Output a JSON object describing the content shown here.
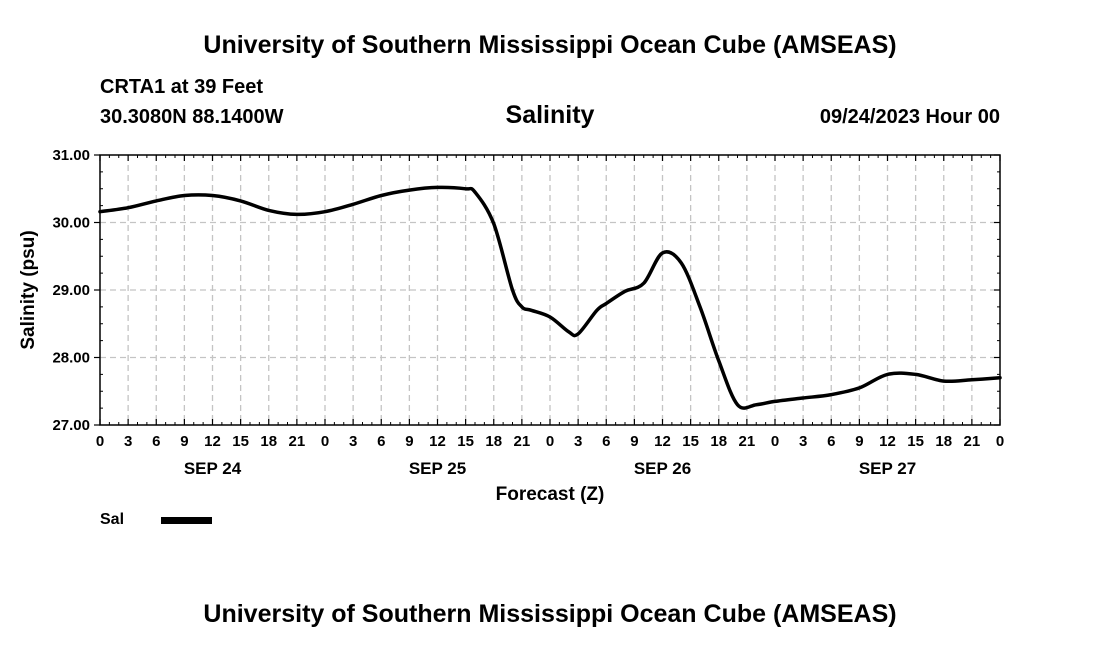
{
  "header": {
    "title": "University of Southern Mississippi Ocean Cube (AMSEAS)",
    "station": "CRTA1 at 39 Feet",
    "coords": "30.3080N  88.1400W",
    "datetime": "09/24/2023 Hour 00"
  },
  "footer": {
    "title": "University of Southern Mississippi Ocean Cube (AMSEAS)"
  },
  "legend": {
    "label": "Sal"
  },
  "chart_data": {
    "type": "line",
    "title": "Salinity",
    "xlabel": "Forecast (Z)",
    "ylabel": "Salinity (psu)",
    "ylim": [
      27.0,
      31.0
    ],
    "xlim": [
      0,
      96
    ],
    "yticks": [
      "27.00",
      "28.00",
      "29.00",
      "30.00",
      "31.00"
    ],
    "xtick_labels": [
      "0",
      "3",
      "6",
      "9",
      "12",
      "15",
      "18",
      "21",
      "0",
      "3",
      "6",
      "9",
      "12",
      "15",
      "18",
      "21",
      "0",
      "3",
      "6",
      "9",
      "12",
      "15",
      "18",
      "21",
      "0",
      "3",
      "6",
      "9",
      "12",
      "15",
      "18",
      "21",
      "0"
    ],
    "day_labels": [
      {
        "label": "SEP 24",
        "hour": 12
      },
      {
        "label": "SEP 25",
        "hour": 36
      },
      {
        "label": "SEP 26",
        "hour": 60
      },
      {
        "label": "SEP 27",
        "hour": 84
      }
    ],
    "grid": true,
    "line_color": "#000000",
    "series": [
      {
        "name": "Sal",
        "x": [
          0,
          3,
          6,
          9,
          12,
          15,
          18,
          21,
          24,
          27,
          30,
          33,
          36,
          39,
          40,
          42,
          44,
          45,
          46,
          48,
          50,
          51,
          53,
          54,
          56,
          58,
          60,
          62,
          64,
          66,
          68,
          70,
          72,
          75,
          78,
          81,
          84,
          87,
          90,
          93,
          96
        ],
        "values": [
          30.16,
          30.22,
          30.32,
          30.4,
          30.4,
          30.32,
          30.18,
          30.12,
          30.16,
          30.27,
          30.4,
          30.48,
          30.52,
          30.5,
          30.45,
          29.98,
          29.0,
          28.75,
          28.7,
          28.6,
          28.38,
          28.35,
          28.7,
          28.8,
          28.98,
          29.1,
          29.55,
          29.4,
          28.75,
          27.95,
          27.3,
          27.3,
          27.35,
          27.4,
          27.45,
          27.55,
          27.75,
          27.75,
          27.65,
          27.67,
          27.7
        ]
      }
    ]
  }
}
